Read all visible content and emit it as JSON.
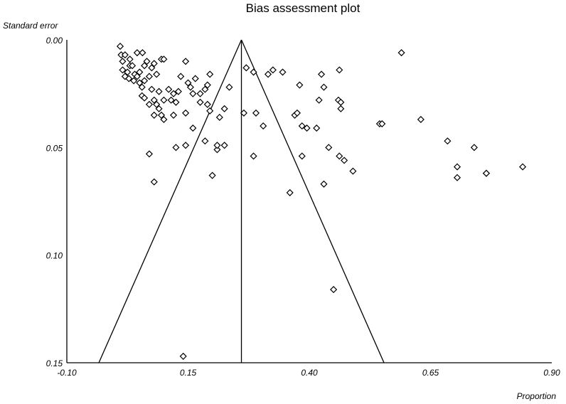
{
  "chart_data": {
    "type": "scatter",
    "title": "Bias assessment plot",
    "xlabel": "Proportion",
    "ylabel": "Standard error",
    "xlim": [
      -0.1,
      0.9
    ],
    "ylim": [
      0.0,
      0.15
    ],
    "y_inverted": true,
    "x_ticks": [
      "-0.10",
      "0.15",
      "0.40",
      "0.65",
      "0.90"
    ],
    "y_ticks": [
      "0.00",
      "0.05",
      "0.10",
      "0.15"
    ],
    "pooled_estimate": 0.26,
    "funnel_apex_se": 0.0,
    "funnel_base_se": 0.15,
    "marker": "diamond",
    "points": [
      [
        0.01,
        0.003
      ],
      [
        0.012,
        0.007
      ],
      [
        0.015,
        0.01
      ],
      [
        0.02,
        0.007
      ],
      [
        0.03,
        0.009
      ],
      [
        0.045,
        0.006
      ],
      [
        0.056,
        0.006
      ],
      [
        0.015,
        0.014
      ],
      [
        0.03,
        0.012
      ],
      [
        0.025,
        0.015
      ],
      [
        0.035,
        0.012
      ],
      [
        0.04,
        0.016
      ],
      [
        0.05,
        0.015
      ],
      [
        0.06,
        0.012
      ],
      [
        0.065,
        0.01
      ],
      [
        0.075,
        0.013
      ],
      [
        0.08,
        0.011
      ],
      [
        0.095,
        0.009
      ],
      [
        0.1,
        0.009
      ],
      [
        0.02,
        0.017
      ],
      [
        0.028,
        0.018
      ],
      [
        0.038,
        0.019
      ],
      [
        0.045,
        0.017
      ],
      [
        0.05,
        0.02
      ],
      [
        0.055,
        0.022
      ],
      [
        0.06,
        0.019
      ],
      [
        0.07,
        0.017
      ],
      [
        0.085,
        0.016
      ],
      [
        0.075,
        0.023
      ],
      [
        0.09,
        0.024
      ],
      [
        0.055,
        0.026
      ],
      [
        0.06,
        0.027
      ],
      [
        0.08,
        0.028
      ],
      [
        0.07,
        0.03
      ],
      [
        0.085,
        0.03
      ],
      [
        0.09,
        0.032
      ],
      [
        0.1,
        0.028
      ],
      [
        0.11,
        0.023
      ],
      [
        0.12,
        0.025
      ],
      [
        0.13,
        0.024
      ],
      [
        0.145,
        0.01
      ],
      [
        0.135,
        0.017
      ],
      [
        0.15,
        0.02
      ],
      [
        0.165,
        0.018
      ],
      [
        0.195,
        0.016
      ],
      [
        0.125,
        0.029
      ],
      [
        0.115,
        0.028
      ],
      [
        0.155,
        0.022
      ],
      [
        0.16,
        0.025
      ],
      [
        0.175,
        0.025
      ],
      [
        0.185,
        0.023
      ],
      [
        0.19,
        0.021
      ],
      [
        0.175,
        0.029
      ],
      [
        0.19,
        0.03
      ],
      [
        0.235,
        0.022
      ],
      [
        0.08,
        0.035
      ],
      [
        0.095,
        0.035
      ],
      [
        0.1,
        0.037
      ],
      [
        0.12,
        0.035
      ],
      [
        0.145,
        0.034
      ],
      [
        0.16,
        0.041
      ],
      [
        0.195,
        0.033
      ],
      [
        0.215,
        0.036
      ],
      [
        0.225,
        0.032
      ],
      [
        0.185,
        0.047
      ],
      [
        0.21,
        0.051
      ],
      [
        0.225,
        0.049
      ],
      [
        0.21,
        0.049
      ],
      [
        0.07,
        0.053
      ],
      [
        0.125,
        0.05
      ],
      [
        0.145,
        0.049
      ],
      [
        0.08,
        0.066
      ],
      [
        0.2,
        0.063
      ],
      [
        0.27,
        0.013
      ],
      [
        0.285,
        0.015
      ],
      [
        0.315,
        0.016
      ],
      [
        0.325,
        0.014
      ],
      [
        0.345,
        0.015
      ],
      [
        0.265,
        0.034
      ],
      [
        0.29,
        0.034
      ],
      [
        0.305,
        0.04
      ],
      [
        0.285,
        0.054
      ],
      [
        0.36,
        0.071
      ],
      [
        0.37,
        0.035
      ],
      [
        0.375,
        0.034
      ],
      [
        0.385,
        0.04
      ],
      [
        0.395,
        0.041
      ],
      [
        0.385,
        0.054
      ],
      [
        0.38,
        0.021
      ],
      [
        0.415,
        0.041
      ],
      [
        0.42,
        0.028
      ],
      [
        0.425,
        0.016
      ],
      [
        0.43,
        0.022
      ],
      [
        0.44,
        0.05
      ],
      [
        0.43,
        0.067
      ],
      [
        0.46,
        0.028
      ],
      [
        0.465,
        0.029
      ],
      [
        0.465,
        0.032
      ],
      [
        0.462,
        0.014
      ],
      [
        0.462,
        0.054
      ],
      [
        0.472,
        0.056
      ],
      [
        0.49,
        0.061
      ],
      [
        0.545,
        0.039
      ],
      [
        0.55,
        0.039
      ],
      [
        0.59,
        0.006
      ],
      [
        0.63,
        0.037
      ],
      [
        0.685,
        0.047
      ],
      [
        0.705,
        0.059
      ],
      [
        0.705,
        0.064
      ],
      [
        0.74,
        0.05
      ],
      [
        0.765,
        0.062
      ],
      [
        0.765,
        0.062
      ],
      [
        0.84,
        0.059
      ],
      [
        0.14,
        0.147
      ],
      [
        0.45,
        0.116
      ]
    ]
  }
}
